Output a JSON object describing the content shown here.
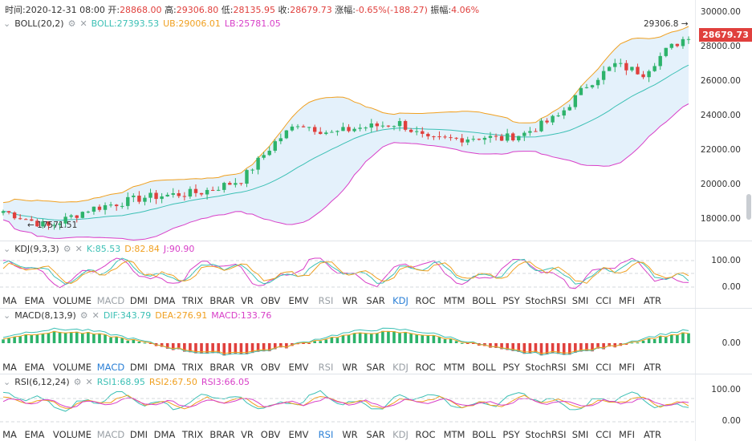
{
  "info": {
    "time_label": "时间:",
    "time_value": "2020-12-31 08:00",
    "open_label": "开:",
    "open_value": "28868.00",
    "high_label": "高:",
    "high_value": "29306.80",
    "low_label": "低:",
    "low_value": "28135.95",
    "close_label": "收:",
    "close_value": "28679.73",
    "change_label": "涨幅:",
    "change_value": "-0.65%(-188.27)",
    "amplitude_label": "振幅:",
    "amplitude_value": "4.06%"
  },
  "boll": {
    "name": "BOLL(20,2)",
    "boll_text": "BOLL:27393.53",
    "ub_text": "UB:29006.01",
    "lb_text": "LB:25781.05",
    "colors": {
      "mid": "#3cc0b5",
      "ub": "#f0a020",
      "lb": "#d83fc8"
    }
  },
  "price_axis": [
    "30000.00",
    "28000.00",
    "26000.00",
    "24000.00",
    "22000.00",
    "20000.00",
    "18000.00"
  ],
  "current_price_tag": "28679.73",
  "high_marker": "29306.8",
  "low_marker": "17571.51",
  "kdj": {
    "name": "KDJ(9,3,3)",
    "k_text": "K:85.53",
    "d_text": "D:82.84",
    "j_text": "J:90.90",
    "axis": [
      "100.00",
      "0.00"
    ],
    "colors": {
      "k": "#3cc0b5",
      "d": "#f0a020",
      "j": "#d83fc8"
    }
  },
  "macd": {
    "name": "MACD(8,13,9)",
    "dif_text": "DIF:343.79",
    "dea_text": "DEA:276.91",
    "macd_text": "MACD:133.76",
    "axis": [
      "0.00"
    ],
    "colors": {
      "dif": "#3cc0b5",
      "dea": "#f0a020",
      "up": "#2db36b",
      "down": "#e0403d"
    }
  },
  "rsi": {
    "name": "RSI(6,12,24)",
    "rsi1_text": "RSI1:68.95",
    "rsi2_text": "RSI2:67.50",
    "rsi3_text": "RSI3:66.05",
    "axis": [
      "100.00",
      "0.00"
    ],
    "colors": {
      "rsi1": "#3cc0b5",
      "rsi2": "#f0a020",
      "rsi3": "#d83fc8"
    }
  },
  "indicator_tabs": [
    "MA",
    "EMA",
    "VOLUME",
    "MACD",
    "DMI",
    "DMA",
    "TRIX",
    "BRAR",
    "VR",
    "OBV",
    "EMV",
    "RSI",
    "WR",
    "SAR",
    "KDJ",
    "ROC",
    "MTM",
    "BOLL",
    "PSY",
    "StochRSI",
    "SMI",
    "CCI",
    "MFI",
    "ATR"
  ],
  "tabs_row1": {
    "active": "KDJ",
    "dim": [
      "MACD",
      "RSI"
    ]
  },
  "tabs_row2": {
    "active": "MACD",
    "dim": [
      "RSI",
      "KDJ"
    ]
  },
  "tabs_row3": {
    "active": "RSI",
    "dim": [
      "MACD",
      "KDJ"
    ]
  },
  "settings_icon": "gear-icon",
  "close_icon": "close-icon",
  "colors": {
    "up": "#2db36b",
    "down": "#e0403d",
    "band_fill": "#e4f1fb",
    "accent": "#2a7fd6"
  }
}
